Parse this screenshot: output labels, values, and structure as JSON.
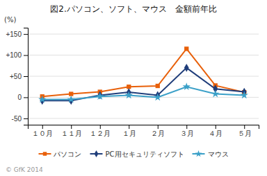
{
  "chart_data": {
    "type": "line",
    "title": "図2.パソコン、ソフト、マウス　金額前年比",
    "ylabel": "(%)",
    "annotations": [
      "© GfK 2014"
    ],
    "categories": [
      "１０月",
      "１１月",
      "１２月",
      "１月",
      "２月",
      "３月",
      "４月",
      "５月"
    ],
    "series": [
      {
        "name": "パソコン",
        "color": "#E8600A",
        "marker": "square",
        "values": [
          2,
          8,
          13,
          25,
          27,
          115,
          28,
          12
        ]
      },
      {
        "name": "PC用セキュリティソフト",
        "color": "#1F3D7A",
        "marker": "diamond",
        "values": [
          -8,
          -8,
          5,
          12,
          5,
          70,
          20,
          13
        ]
      },
      {
        "name": "マウス",
        "color": "#3BA0C8",
        "marker": "star",
        "values": [
          -5,
          -5,
          2,
          5,
          0,
          25,
          8,
          5
        ]
      }
    ],
    "ylim": [
      -65,
      165
    ],
    "yticks": [
      -50,
      0,
      {
        "value": 50,
        "label": "+50"
      },
      {
        "value": 100,
        "label": "+100"
      },
      {
        "value": 150,
        "label": "+150"
      }
    ],
    "grid": true,
    "legend": "bottom"
  }
}
